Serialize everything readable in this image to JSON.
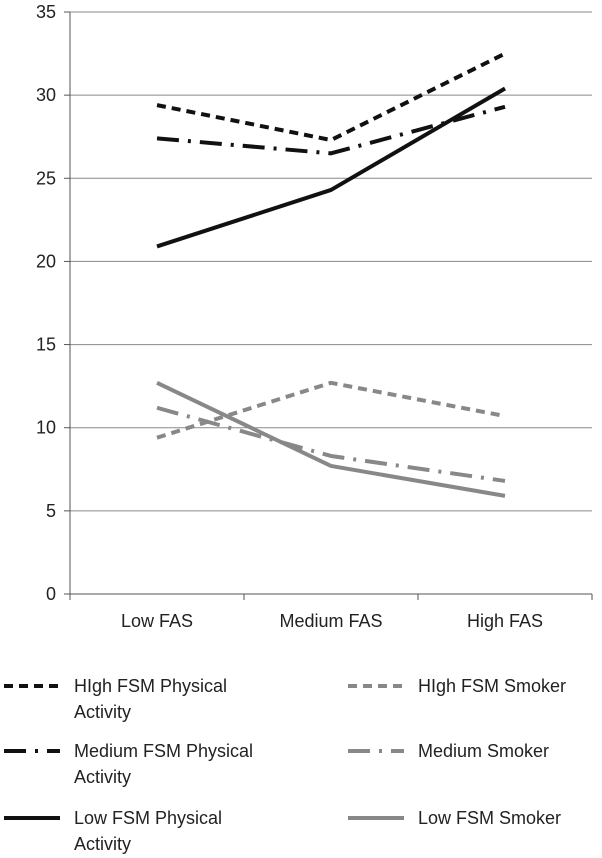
{
  "chart_data": {
    "type": "line",
    "categories": [
      "Low FAS",
      "Medium FAS",
      "High FAS"
    ],
    "ylim": [
      0,
      35
    ],
    "yticks": [
      0,
      5,
      10,
      15,
      20,
      25,
      30,
      35
    ],
    "grid": true,
    "legend_position": "bottom",
    "series": [
      {
        "name": "HIgh FSM Physical Activity",
        "legend_lines": [
          "HIgh FSM Physical",
          "Activity"
        ],
        "values": [
          29.4,
          27.3,
          32.5
        ],
        "color": "#111111",
        "style": "short-dash"
      },
      {
        "name": "Medium FSM Physical Activity",
        "legend_lines": [
          "Medium FSM Physical",
          "Activity"
        ],
        "values": [
          27.4,
          26.5,
          29.3
        ],
        "color": "#111111",
        "style": "long-dash-dot"
      },
      {
        "name": "Low FSM Physical Activity",
        "legend_lines": [
          "Low FSM Physical",
          "Activity"
        ],
        "values": [
          20.9,
          24.3,
          30.4
        ],
        "color": "#111111",
        "style": "solid"
      },
      {
        "name": "HIgh FSM Smoker",
        "legend_lines": [
          "HIgh FSM Smoker"
        ],
        "values": [
          9.4,
          12.7,
          10.7
        ],
        "color": "#888888",
        "style": "short-dash"
      },
      {
        "name": "Medium Smoker",
        "legend_lines": [
          "Medium Smoker"
        ],
        "values": [
          11.2,
          8.3,
          6.8
        ],
        "color": "#888888",
        "style": "long-dash-dot"
      },
      {
        "name": "Low FSM Smoker",
        "legend_lines": [
          "Low FSM Smoker"
        ],
        "values": [
          12.7,
          7.7,
          5.9
        ],
        "color": "#888888",
        "style": "solid"
      }
    ]
  }
}
